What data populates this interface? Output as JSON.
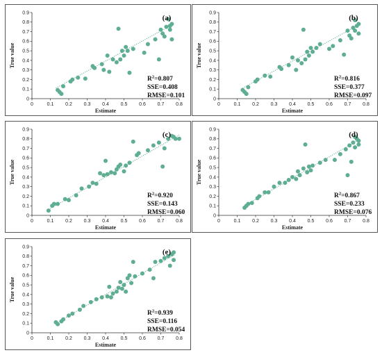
{
  "colors": {
    "point": "#5fae92",
    "fit": "#5fae92",
    "axis": "#333333",
    "frame": "#555555"
  },
  "chart_data": [
    {
      "type": "scatter",
      "panel_label": "(a)",
      "xlabel": "Estimate",
      "ylabel": "True value",
      "xlim": [
        0,
        0.8
      ],
      "ylim": [
        0,
        0.9
      ],
      "xticks": [
        "0",
        "0.1",
        "0.2",
        "0.3",
        "0.4",
        "0.5",
        "0.6",
        "0.7",
        "0.8"
      ],
      "yticks": [
        "0",
        "0.1",
        "0.2",
        "0.3",
        "0.4",
        "0.5",
        "0.6",
        "0.7",
        "0.8",
        "0.9"
      ],
      "stats": {
        "r2_label": "R",
        "r2_sup": "2",
        "r2_value": "=0.807",
        "sse": "SSE=0.408",
        "rmse": "RMSE=0.101"
      },
      "fit": [
        [
          0.13,
          0.11
        ],
        [
          0.77,
          0.78
        ]
      ],
      "points": [
        [
          0.14,
          0.09
        ],
        [
          0.15,
          0.07
        ],
        [
          0.16,
          0.05
        ],
        [
          0.17,
          0.13
        ],
        [
          0.21,
          0.18
        ],
        [
          0.22,
          0.2
        ],
        [
          0.25,
          0.22
        ],
        [
          0.29,
          0.21
        ],
        [
          0.33,
          0.34
        ],
        [
          0.34,
          0.32
        ],
        [
          0.38,
          0.36
        ],
        [
          0.39,
          0.3
        ],
        [
          0.41,
          0.45
        ],
        [
          0.42,
          0.28
        ],
        [
          0.44,
          0.41
        ],
        [
          0.46,
          0.38
        ],
        [
          0.47,
          0.73
        ],
        [
          0.48,
          0.41
        ],
        [
          0.49,
          0.5
        ],
        [
          0.5,
          0.45
        ],
        [
          0.51,
          0.54
        ],
        [
          0.52,
          0.5
        ],
        [
          0.53,
          0.27
        ],
        [
          0.55,
          0.52
        ],
        [
          0.61,
          0.48
        ],
        [
          0.63,
          0.57
        ],
        [
          0.67,
          0.62
        ],
        [
          0.69,
          0.41
        ],
        [
          0.7,
          0.72
        ],
        [
          0.71,
          0.68
        ],
        [
          0.72,
          0.65
        ],
        [
          0.73,
          0.75
        ],
        [
          0.74,
          0.83
        ],
        [
          0.75,
          0.72
        ],
        [
          0.75,
          0.76
        ],
        [
          0.76,
          0.62
        ],
        [
          0.76,
          0.78
        ]
      ]
    },
    {
      "type": "scatter",
      "panel_label": "(b)",
      "xlabel": "Estimate",
      "ylabel": "True value",
      "xlim": [
        0,
        0.8
      ],
      "ylim": [
        0,
        0.9
      ],
      "xticks": [
        "0",
        "0.1",
        "0.2",
        "0.3",
        "0.4",
        "0.5",
        "0.6",
        "0.7",
        "0.8"
      ],
      "yticks": [
        "0",
        "0.1",
        "0.2",
        "0.3",
        "0.4",
        "0.5",
        "0.6",
        "0.7",
        "0.8",
        "0.9"
      ],
      "stats": {
        "r2_label": "R",
        "r2_sup": "2",
        "r2_value": "=0.816",
        "sse": "SSE=0.377",
        "rmse": "RMSE=0.097"
      },
      "fit": [
        [
          0.12,
          0.1
        ],
        [
          0.77,
          0.78
        ]
      ],
      "points": [
        [
          0.13,
          0.09
        ],
        [
          0.14,
          0.07
        ],
        [
          0.15,
          0.05
        ],
        [
          0.16,
          0.12
        ],
        [
          0.2,
          0.18
        ],
        [
          0.21,
          0.2
        ],
        [
          0.25,
          0.24
        ],
        [
          0.28,
          0.23
        ],
        [
          0.33,
          0.33
        ],
        [
          0.34,
          0.31
        ],
        [
          0.38,
          0.35
        ],
        [
          0.4,
          0.43
        ],
        [
          0.42,
          0.3
        ],
        [
          0.43,
          0.4
        ],
        [
          0.45,
          0.37
        ],
        [
          0.46,
          0.72
        ],
        [
          0.47,
          0.41
        ],
        [
          0.48,
          0.49
        ],
        [
          0.49,
          0.45
        ],
        [
          0.5,
          0.53
        ],
        [
          0.51,
          0.49
        ],
        [
          0.53,
          0.53
        ],
        [
          0.55,
          0.57
        ],
        [
          0.6,
          0.52
        ],
        [
          0.62,
          0.55
        ],
        [
          0.66,
          0.61
        ],
        [
          0.68,
          0.46
        ],
        [
          0.7,
          0.71
        ],
        [
          0.71,
          0.66
        ],
        [
          0.72,
          0.63
        ],
        [
          0.73,
          0.74
        ],
        [
          0.74,
          0.82
        ],
        [
          0.74,
          0.71
        ],
        [
          0.75,
          0.76
        ],
        [
          0.76,
          0.68
        ],
        [
          0.76,
          0.78
        ]
      ]
    },
    {
      "type": "scatter",
      "panel_label": "(c)",
      "xlabel": "Estimate",
      "ylabel": "True value",
      "xlim": [
        0,
        0.8
      ],
      "ylim": [
        0,
        0.9
      ],
      "xticks": [
        "0",
        "0.1",
        "0.2",
        "0.3",
        "0.4",
        "0.5",
        "0.6",
        "0.7",
        "0.8"
      ],
      "yticks": [
        "0",
        "0.1",
        "0.2",
        "0.3",
        "0.4",
        "0.5",
        "0.6",
        "0.7",
        "0.8",
        "0.9"
      ],
      "stats": {
        "r2_label": "R",
        "r2_sup": "2",
        "r2_value": "=0.920",
        "sse": "SSE=0.143",
        "rmse": "RMSE=0.060"
      },
      "fit": [
        [
          0.09,
          0.06
        ],
        [
          0.8,
          0.84
        ]
      ],
      "points": [
        [
          0.09,
          0.05
        ],
        [
          0.11,
          0.1
        ],
        [
          0.12,
          0.12
        ],
        [
          0.14,
          0.12
        ],
        [
          0.18,
          0.17
        ],
        [
          0.2,
          0.16
        ],
        [
          0.24,
          0.21
        ],
        [
          0.27,
          0.28
        ],
        [
          0.31,
          0.3
        ],
        [
          0.33,
          0.34
        ],
        [
          0.35,
          0.33
        ],
        [
          0.37,
          0.44
        ],
        [
          0.39,
          0.42
        ],
        [
          0.4,
          0.57
        ],
        [
          0.41,
          0.43
        ],
        [
          0.43,
          0.45
        ],
        [
          0.45,
          0.44
        ],
        [
          0.46,
          0.48
        ],
        [
          0.47,
          0.51
        ],
        [
          0.48,
          0.53
        ],
        [
          0.5,
          0.46
        ],
        [
          0.51,
          0.52
        ],
        [
          0.53,
          0.55
        ],
        [
          0.55,
          0.77
        ],
        [
          0.57,
          0.63
        ],
        [
          0.58,
          0.65
        ],
        [
          0.63,
          0.68
        ],
        [
          0.66,
          0.73
        ],
        [
          0.69,
          0.76
        ],
        [
          0.71,
          0.51
        ],
        [
          0.72,
          0.7
        ],
        [
          0.74,
          0.8
        ],
        [
          0.76,
          0.83
        ],
        [
          0.77,
          0.82
        ],
        [
          0.78,
          0.8
        ],
        [
          0.8,
          0.8
        ]
      ]
    },
    {
      "type": "scatter",
      "panel_label": "(d)",
      "xlabel": "Estimate",
      "ylabel": "True value",
      "xlim": [
        0,
        0.8
      ],
      "ylim": [
        0,
        0.9
      ],
      "xticks": [
        "0",
        "0.1",
        "0.2",
        "0.3",
        "0.4",
        "0.5",
        "0.6",
        "0.7",
        "0.8"
      ],
      "yticks": [
        "0",
        "0.1",
        "0.2",
        "0.3",
        "0.4",
        "0.5",
        "0.6",
        "0.7",
        "0.8",
        "0.9"
      ],
      "stats": {
        "r2_label": "R",
        "r2_sup": "2",
        "r2_value": "=0.867",
        "sse": "SSE=0.233",
        "rmse": "RMSE=0.076"
      },
      "fit": [
        [
          0.14,
          0.1
        ],
        [
          0.77,
          0.8
        ]
      ],
      "points": [
        [
          0.14,
          0.08
        ],
        [
          0.15,
          0.1
        ],
        [
          0.16,
          0.12
        ],
        [
          0.18,
          0.13
        ],
        [
          0.21,
          0.18
        ],
        [
          0.22,
          0.2
        ],
        [
          0.25,
          0.24
        ],
        [
          0.27,
          0.24
        ],
        [
          0.3,
          0.3
        ],
        [
          0.33,
          0.34
        ],
        [
          0.36,
          0.34
        ],
        [
          0.38,
          0.37
        ],
        [
          0.4,
          0.4
        ],
        [
          0.42,
          0.38
        ],
        [
          0.43,
          0.46
        ],
        [
          0.44,
          0.42
        ],
        [
          0.46,
          0.49
        ],
        [
          0.47,
          0.74
        ],
        [
          0.48,
          0.45
        ],
        [
          0.49,
          0.51
        ],
        [
          0.5,
          0.47
        ],
        [
          0.51,
          0.52
        ],
        [
          0.55,
          0.55
        ],
        [
          0.58,
          0.58
        ],
        [
          0.63,
          0.58
        ],
        [
          0.66,
          0.64
        ],
        [
          0.69,
          0.69
        ],
        [
          0.7,
          0.42
        ],
        [
          0.71,
          0.73
        ],
        [
          0.72,
          0.56
        ],
        [
          0.73,
          0.76
        ],
        [
          0.74,
          0.82
        ],
        [
          0.74,
          0.71
        ],
        [
          0.75,
          0.8
        ],
        [
          0.76,
          0.74
        ],
        [
          0.76,
          0.78
        ]
      ]
    },
    {
      "type": "scatter",
      "panel_label": "(e)",
      "xlabel": "Estimate",
      "ylabel": "True value",
      "xlim": [
        0,
        0.8
      ],
      "ylim": [
        0,
        0.9
      ],
      "xticks": [
        "0",
        "0.1",
        "0.2",
        "0.3",
        "0.4",
        "0.5",
        "0.6",
        "0.7",
        "0.8"
      ],
      "yticks": [
        "0",
        "0.1",
        "0.2",
        "0.3",
        "0.4",
        "0.5",
        "0.6",
        "0.7",
        "0.8",
        "0.9"
      ],
      "stats": {
        "r2_label": "R",
        "r2_sup": "2",
        "r2_value": "=0.939",
        "sse": "SSE=0.116",
        "rmse": "RMSE=0.054"
      },
      "fit": [
        [
          0.13,
          0.1
        ],
        [
          0.78,
          0.82
        ]
      ],
      "points": [
        [
          0.13,
          0.11
        ],
        [
          0.14,
          0.09
        ],
        [
          0.16,
          0.12
        ],
        [
          0.17,
          0.14
        ],
        [
          0.2,
          0.18
        ],
        [
          0.22,
          0.2
        ],
        [
          0.26,
          0.24
        ],
        [
          0.28,
          0.28
        ],
        [
          0.32,
          0.32
        ],
        [
          0.35,
          0.35
        ],
        [
          0.38,
          0.37
        ],
        [
          0.41,
          0.38
        ],
        [
          0.42,
          0.48
        ],
        [
          0.43,
          0.37
        ],
        [
          0.44,
          0.41
        ],
        [
          0.46,
          0.43
        ],
        [
          0.47,
          0.47
        ],
        [
          0.48,
          0.53
        ],
        [
          0.49,
          0.46
        ],
        [
          0.5,
          0.5
        ],
        [
          0.51,
          0.43
        ],
        [
          0.52,
          0.57
        ],
        [
          0.53,
          0.6
        ],
        [
          0.54,
          0.52
        ],
        [
          0.55,
          0.74
        ],
        [
          0.56,
          0.59
        ],
        [
          0.6,
          0.62
        ],
        [
          0.64,
          0.66
        ],
        [
          0.66,
          0.57
        ],
        [
          0.67,
          0.74
        ],
        [
          0.7,
          0.75
        ],
        [
          0.72,
          0.78
        ],
        [
          0.74,
          0.8
        ],
        [
          0.75,
          0.7
        ],
        [
          0.76,
          0.82
        ],
        [
          0.77,
          0.76
        ],
        [
          0.77,
          0.84
        ]
      ]
    }
  ]
}
